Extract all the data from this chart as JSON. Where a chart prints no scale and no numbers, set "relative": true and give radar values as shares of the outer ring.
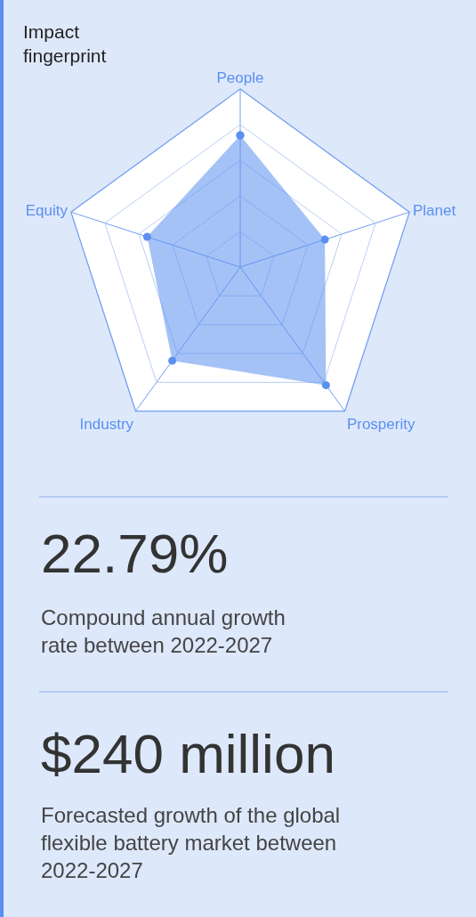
{
  "chart_data": {
    "type": "radar",
    "title": "Impact\nfingerprint",
    "categories": [
      "People",
      "Planet",
      "Prosperity",
      "Industry",
      "Equity"
    ],
    "series": [
      {
        "color": "#5b8ff0",
        "values": [
          0.74,
          0.5,
          0.82,
          0.65,
          0.55
        ]
      }
    ],
    "relative": true,
    "marker": "circle",
    "grid": true,
    "annotations": [
      "22.79%",
      "Compound annual growth\nrate between 2022-2027",
      "$240 million",
      "Forecasted growth of the global\nflexible battery market between\n2022-2027"
    ]
  }
}
